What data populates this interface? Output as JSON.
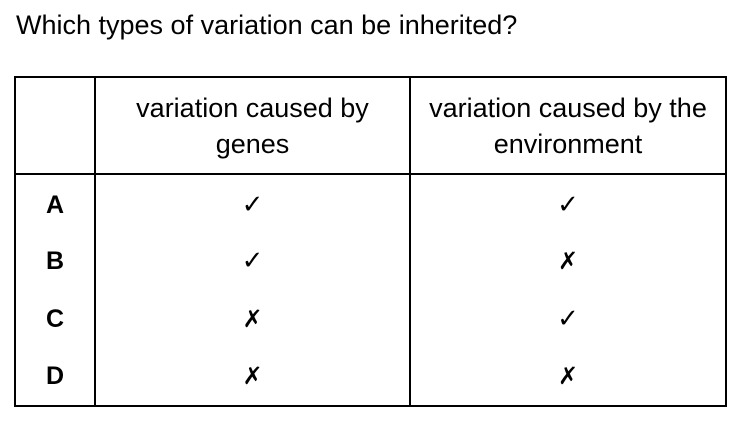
{
  "question": "Which types of variation can be inherited?",
  "table": {
    "headers": [
      "",
      "variation caused by genes",
      "variation caused by the environment"
    ],
    "rows": [
      {
        "letter": "A",
        "genes": "✓",
        "environment": "✓"
      },
      {
        "letter": "B",
        "genes": "✓",
        "environment": "✗"
      },
      {
        "letter": "C",
        "genes": "✗",
        "environment": "✓"
      },
      {
        "letter": "D",
        "genes": "✗",
        "environment": "✗"
      }
    ]
  }
}
